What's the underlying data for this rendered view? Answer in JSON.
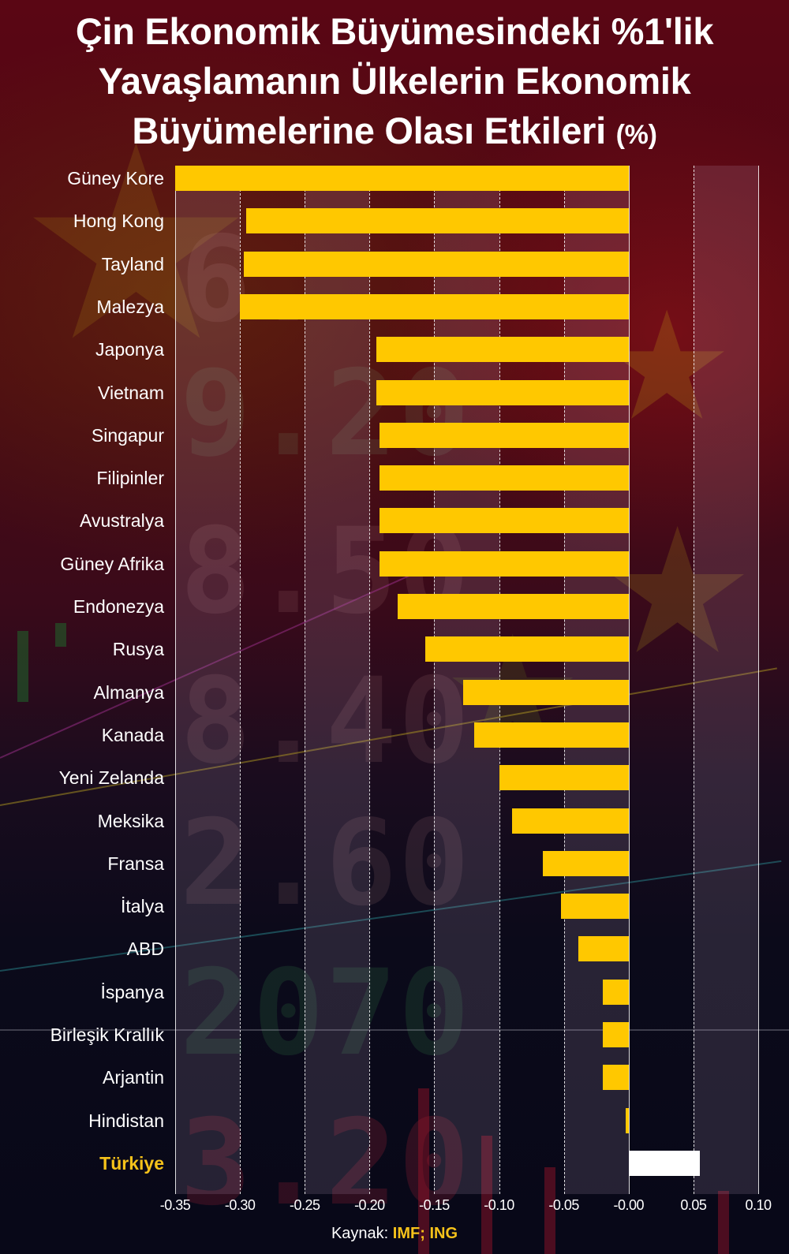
{
  "title": {
    "line1": "Çin Ekonomik Büyümesindeki %1'lik",
    "line2": "Yavaşlamanın Ülkelerin Ekonomik",
    "line3": "Büyümelerine Olası Etkileri",
    "unit": "(%)"
  },
  "source": {
    "label": "Kaynak:",
    "value": "IMF; ING"
  },
  "colors": {
    "bar": "#ffc800",
    "highlight_bar": "#ffffff",
    "highlight_label": "#f6c21a",
    "text": "#ffffff"
  },
  "chart_data": {
    "type": "bar",
    "orientation": "horizontal",
    "title": "Çin Ekonomik Büyümesindeki %1'lik Yavaşlamanın Ülkelerin Ekonomik Büyümelerine Olası Etkileri (%)",
    "xlabel": "",
    "ylabel": "",
    "xlim": [
      -0.35,
      0.1
    ],
    "grid": true,
    "legend": "none",
    "xticks": [
      "-0.35",
      "-0.30",
      "-0.25",
      "-0.20",
      "-0.15",
      "-0.10",
      "-0.05",
      "-0.00",
      "0.05",
      "0.10"
    ],
    "categories": [
      "Güney Kore",
      "Hong Kong",
      "Tayland",
      "Malezya",
      "Japonya",
      "Vietnam",
      "Singapur",
      "Filipinler",
      "Avustralya",
      "Güney Afrika",
      "Endonezya",
      "Rusya",
      "Almanya",
      "Kanada",
      "Yeni Zelanda",
      "Meksika",
      "Fransa",
      "İtalya",
      "ABD",
      "İspanya",
      "Birleşik Krallık",
      "Arjantin",
      "Hindistan",
      "Türkiye"
    ],
    "values": [
      -0.35,
      -0.295,
      -0.297,
      -0.3,
      -0.195,
      -0.195,
      -0.192,
      -0.192,
      -0.192,
      -0.192,
      -0.178,
      -0.157,
      -0.128,
      -0.119,
      -0.1,
      -0.09,
      -0.066,
      -0.052,
      -0.039,
      -0.02,
      -0.02,
      -0.02,
      -0.002,
      0.055
    ],
    "highlight": "Türkiye",
    "source": "Kaynak: IMF; ING"
  }
}
